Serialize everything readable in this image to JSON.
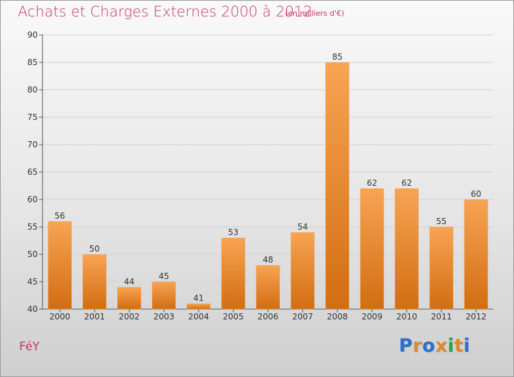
{
  "header": {
    "title": "Achats et Charges Externes 2000 à 2012",
    "subtitle": "(en milliers d'€)"
  },
  "footer": {
    "town": "FéY",
    "logo_letters": [
      "P",
      "r",
      "o",
      "x",
      "i",
      "t",
      "i"
    ]
  },
  "colors": {
    "bar_top": "#f7a453",
    "bar_bottom": "#d26d12",
    "title": "#c8326e",
    "logo": [
      "#2a6fc9",
      "#e0872d",
      "#2a6fc9",
      "#e0872d",
      "#2aa44a",
      "#e0872d",
      "#2a6fc9"
    ]
  },
  "chart_data": {
    "type": "bar",
    "title": "Achats et Charges Externes 2000 à 2012",
    "subtitle": "(en milliers d'€)",
    "categories": [
      "2000",
      "2001",
      "2002",
      "2003",
      "2004",
      "2005",
      "2006",
      "2007",
      "2008",
      "2009",
      "2010",
      "2011",
      "2012"
    ],
    "values": [
      56,
      50,
      44,
      45,
      41,
      53,
      48,
      54,
      85,
      62,
      62,
      55,
      60
    ],
    "ylim": [
      40,
      90
    ],
    "yticks": [
      40,
      45,
      50,
      55,
      60,
      65,
      70,
      75,
      80,
      85,
      90
    ],
    "grid": true,
    "xlabel": "",
    "ylabel": ""
  }
}
